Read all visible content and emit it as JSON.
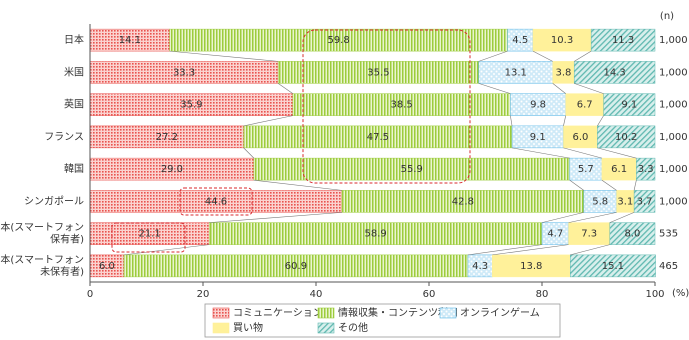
{
  "chart_data": {
    "type": "stacked-bar-horizontal",
    "categories": [
      "日本",
      "米国",
      "英国",
      "フランス",
      "韓国",
      "シンガポール",
      "日本(スマートフォン\n保有者)",
      "日本(スマートフォン\n未保有者)"
    ],
    "series": [
      {
        "name": "コミュニケーション",
        "color": "#e8534f",
        "pattern": "grid",
        "values": [
          14.1,
          33.3,
          35.9,
          27.2,
          29.0,
          44.6,
          21.1,
          6.0
        ],
        "value_labels": [
          "14.1",
          "33.3",
          "35.9",
          "27.2",
          "29.0",
          "44.6",
          "21.1",
          "6.0"
        ]
      },
      {
        "name": "情報収集・コンテンツ利用",
        "color": "#9ccc3c",
        "pattern": "vstripes",
        "values": [
          59.8,
          35.5,
          38.5,
          47.5,
          55.9,
          42.8,
          58.9,
          60.9
        ],
        "value_labels": [
          "59.8",
          "35.5",
          "38.5",
          "47.5",
          "55.9",
          "42.8",
          "58.9",
          "60.9"
        ]
      },
      {
        "name": "オンラインゲーム",
        "color": "#5cb8e6",
        "pattern": "dots",
        "values": [
          4.5,
          13.1,
          9.8,
          9.1,
          5.7,
          5.8,
          4.7,
          4.3
        ],
        "value_labels": [
          "4.5",
          "13.1",
          "9.8",
          "9.1",
          "5.7",
          "5.8",
          "4.7",
          "4.3"
        ]
      },
      {
        "name": "買い物",
        "color": "#fff19a",
        "pattern": "solid",
        "values": [
          10.3,
          3.8,
          6.7,
          6.0,
          6.1,
          3.1,
          7.3,
          13.8
        ],
        "value_labels": [
          "10.3",
          "3.8",
          "6.7",
          "6.0",
          "6.1",
          "3.1",
          "7.3",
          "13.8"
        ]
      },
      {
        "name": "その他",
        "color": "#5fb8b0",
        "pattern": "hatch",
        "values": [
          11.3,
          14.3,
          9.1,
          10.2,
          3.3,
          3.7,
          8.0,
          15.1
        ],
        "value_labels": [
          "11.3",
          "14.3",
          "9.1",
          "10.2",
          "3.3",
          "3.7",
          "8.0",
          "15.1"
        ]
      }
    ],
    "n_label": "(n)",
    "n": [
      {
        "value": 1000,
        "label": "1,000"
      },
      {
        "value": 1000,
        "label": "1,000"
      },
      {
        "value": 1000,
        "label": "1,000"
      },
      {
        "value": 1000,
        "label": "1,000"
      },
      {
        "value": 1000,
        "label": "1,000"
      },
      {
        "value": 1000,
        "label": "1,000"
      },
      535,
      465
    ],
    "xlim": [
      0,
      100
    ],
    "xticks": [
      0,
      20,
      40,
      60,
      80,
      100
    ],
    "x_unit": "(%)"
  }
}
